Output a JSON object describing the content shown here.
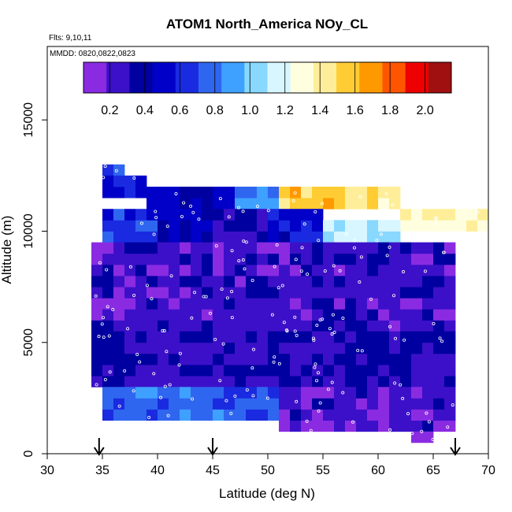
{
  "chart_data": {
    "type": "heatmap",
    "title": "ATOM1 North_America NOy_CL",
    "subtitle_flights": "Flts: 9,10,11",
    "subtitle_dates": "MMDD: 0820,0822,0823",
    "xlabel": "Latitude (deg N)",
    "ylabel": "Altitude (m)",
    "xlim": [
      30,
      70
    ],
    "ylim": [
      0,
      18300
    ],
    "x_ticks": [
      "30",
      "35",
      "40",
      "45",
      "50",
      "55",
      "60",
      "65",
      "70"
    ],
    "y_ticks": [
      "0",
      "5000",
      "10000",
      "15000"
    ],
    "colorbar": {
      "range": [
        0.05,
        2.15
      ],
      "ticks": [
        "0.2",
        "0.4",
        "0.6",
        "0.8",
        "1.0",
        "1.2",
        "1.4",
        "1.6",
        "1.8",
        "2.0"
      ],
      "colors": [
        "#8a2be2",
        "#3c10c8",
        "#0000a0",
        "#0000c8",
        "#1a2ae0",
        "#2f66f0",
        "#3ea0ff",
        "#88d8ff",
        "#d8f6ff",
        "#ffffe0",
        "#ffee99",
        "#ffcc33",
        "#ff9900",
        "#ff5500",
        "#ee0000",
        "#a01010"
      ]
    },
    "bin_size": {
      "lat": 1,
      "alt": 500
    },
    "columns": [
      {
        "lat_start": 35,
        "lat_end": 37,
        "alt_range": [
          12500,
          13000
        ],
        "value": 0.7
      },
      {
        "lat_start": 35,
        "lat_end": 39,
        "alt_range": [
          11500,
          12500
        ],
        "value": 0.55
      },
      {
        "lat_start": 39,
        "lat_end": 43,
        "alt_range": [
          11000,
          12000
        ],
        "value": 0.5
      },
      {
        "lat_start": 43,
        "lat_end": 47,
        "alt_range": [
          11000,
          12000
        ],
        "value": 0.42
      },
      {
        "lat_start": 47,
        "lat_end": 51,
        "alt_range": [
          11000,
          12000
        ],
        "value": 0.85
      },
      {
        "lat_start": 51,
        "lat_end": 57,
        "alt_range": [
          11000,
          12000
        ],
        "value": 1.55
      },
      {
        "lat_start": 57,
        "lat_end": 62,
        "alt_range": [
          11000,
          12000
        ],
        "value": 1.45
      },
      {
        "lat_start": 62,
        "lat_end": 70,
        "alt_range": [
          10000,
          11000
        ],
        "value": 1.35
      },
      {
        "lat_start": 35,
        "lat_end": 40,
        "alt_range": [
          9500,
          11000
        ],
        "value": 0.65
      },
      {
        "lat_start": 40,
        "lat_end": 45,
        "alt_range": [
          9500,
          11000
        ],
        "value": 0.45
      },
      {
        "lat_start": 45,
        "lat_end": 50,
        "alt_range": [
          9500,
          11000
        ],
        "value": 0.35
      },
      {
        "lat_start": 50,
        "lat_end": 55,
        "alt_range": [
          9500,
          11000
        ],
        "value": 0.55
      },
      {
        "lat_start": 55,
        "lat_end": 62,
        "alt_range": [
          9500,
          10500
        ],
        "value": 1.1
      },
      {
        "lat_start": 34,
        "lat_end": 67,
        "alt_range": [
          5500,
          9500
        ],
        "value": 0.25
      },
      {
        "lat_start": 34,
        "lat_end": 67,
        "alt_range": [
          3000,
          5500
        ],
        "value": 0.3
      },
      {
        "lat_start": 35,
        "lat_end": 51,
        "alt_range": [
          1500,
          3000
        ],
        "value": 0.75
      },
      {
        "lat_start": 51,
        "lat_end": 67,
        "alt_range": [
          1000,
          3000
        ],
        "value": 0.22
      },
      {
        "lat_start": 63,
        "lat_end": 65,
        "alt_range": [
          500,
          1000
        ],
        "value": 0.1
      }
    ],
    "flight_markers": [
      {
        "lat": 34.7
      },
      {
        "lat": 45.0
      },
      {
        "lat": 67.0
      }
    ]
  }
}
